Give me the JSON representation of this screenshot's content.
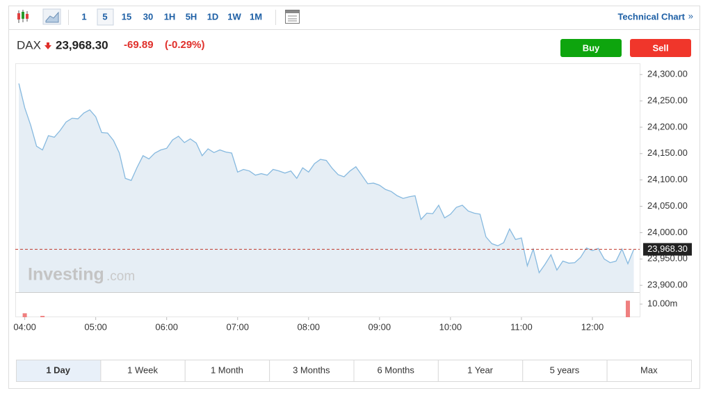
{
  "toolbar": {
    "intervals": [
      "1",
      "5",
      "15",
      "30",
      "1H",
      "5H",
      "1D",
      "1W",
      "1M"
    ],
    "link": "Technical Chart",
    "link_arrow": "»"
  },
  "quote": {
    "symbol": "DAX",
    "price": "23,968.30",
    "change": "-69.89",
    "change_percent": "(-0.29%)"
  },
  "buttons": [
    "Buy",
    "Sell"
  ],
  "watermark": [
    "Investing",
    ".com"
  ],
  "chart_data": {
    "type": "area",
    "color": "#86b9df",
    "fill": "#e6eef5",
    "x": [
      "03:55",
      "04:00",
      "04:05",
      "04:10",
      "04:15",
      "04:20",
      "04:25",
      "04:30",
      "04:35",
      "04:40",
      "04:45",
      "04:50",
      "04:55",
      "05:00",
      "05:05",
      "05:10",
      "05:15",
      "05:20",
      "05:25",
      "05:30",
      "05:35",
      "05:40",
      "05:45",
      "05:50",
      "05:55",
      "06:00",
      "06:05",
      "06:10",
      "06:15",
      "06:20",
      "06:25",
      "06:30",
      "06:35",
      "06:40",
      "06:45",
      "06:50",
      "06:55",
      "07:00",
      "07:05",
      "07:10",
      "07:15",
      "07:20",
      "07:25",
      "07:30",
      "07:35",
      "07:40",
      "07:45",
      "07:50",
      "07:55",
      "08:00",
      "08:05",
      "08:10",
      "08:15",
      "08:20",
      "08:25",
      "08:30",
      "08:35",
      "08:40",
      "08:45",
      "08:50",
      "08:55",
      "09:00",
      "09:05",
      "09:10",
      "09:15",
      "09:20",
      "09:25",
      "09:30",
      "09:35",
      "09:40",
      "09:45",
      "09:50",
      "09:55",
      "10:00",
      "10:05",
      "10:10",
      "10:15",
      "10:20",
      "10:25",
      "10:30",
      "10:35",
      "10:40",
      "10:45",
      "10:50",
      "10:55",
      "11:00",
      "11:05",
      "11:10",
      "11:15",
      "11:20",
      "11:25",
      "11:30",
      "11:35",
      "11:40",
      "11:45",
      "11:50",
      "11:55",
      "12:00",
      "12:05",
      "12:10",
      "12:15",
      "12:20",
      "12:25",
      "12:30",
      "12:35"
    ],
    "values": [
      24283,
      24237,
      24204,
      24164,
      24157,
      24184,
      24181,
      24194,
      24210,
      24217,
      24216,
      24227,
      24233,
      24220,
      24190,
      24189,
      24175,
      24151,
      24103,
      24099,
      24124,
      24146,
      24140,
      24151,
      24157,
      24160,
      24176,
      24183,
      24171,
      24178,
      24170,
      24146,
      24159,
      24152,
      24157,
      24153,
      24151,
      24115,
      24120,
      24117,
      24109,
      24112,
      24109,
      24120,
      24117,
      24113,
      24117,
      24103,
      24123,
      24115,
      24131,
      24139,
      24137,
      24122,
      24110,
      24106,
      24117,
      24125,
      24109,
      24093,
      24094,
      24090,
      24082,
      24078,
      24070,
      24065,
      24068,
      24070,
      24025,
      24037,
      24036,
      24052,
      24028,
      24035,
      24048,
      24052,
      24041,
      24037,
      24035,
      23992,
      23979,
      23975,
      23981,
      24007,
      23987,
      23990,
      23937,
      23969,
      23924,
      23940,
      23958,
      23929,
      23946,
      23942,
      23943,
      23953,
      23971,
      23966,
      23970,
      23950,
      23943,
      23946,
      23969,
      23941,
      23968.3
    ],
    "xlim": [
      "03:52",
      "12:40"
    ],
    "xticks": [
      "04:00",
      "05:00",
      "06:00",
      "07:00",
      "08:00",
      "09:00",
      "10:00",
      "11:00",
      "12:00"
    ],
    "ylim": [
      23887,
      24320
    ],
    "yticks": [
      {
        "value": 24300,
        "label": "24,300.00"
      },
      {
        "value": 24250,
        "label": "24,250.00"
      },
      {
        "value": 24200,
        "label": "24,200.00"
      },
      {
        "value": 24150,
        "label": "24,150.00"
      },
      {
        "value": 24100,
        "label": "24,100.00"
      },
      {
        "value": 24050,
        "label": "24,050.00"
      },
      {
        "value": 24000,
        "label": "24,000.00"
      },
      {
        "value": 23950,
        "label": "23,950.00"
      },
      {
        "value": 23900,
        "label": "23,900.00"
      }
    ],
    "last_label": "23,968.30",
    "volume": {
      "x": [
        "04:00",
        "04:15",
        "12:30"
      ],
      "values": [
        3000000,
        1000000,
        12600000
      ],
      "color": "#ef7f7f",
      "ylim": [
        0,
        18000000
      ],
      "yticks": [
        {
          "value": 10000000,
          "label": "10.00m"
        }
      ]
    }
  },
  "ranges": [
    "1 Day",
    "1 Week",
    "1 Month",
    "3 Months",
    "6 Months",
    "1 Year",
    "5 years",
    "Max"
  ]
}
